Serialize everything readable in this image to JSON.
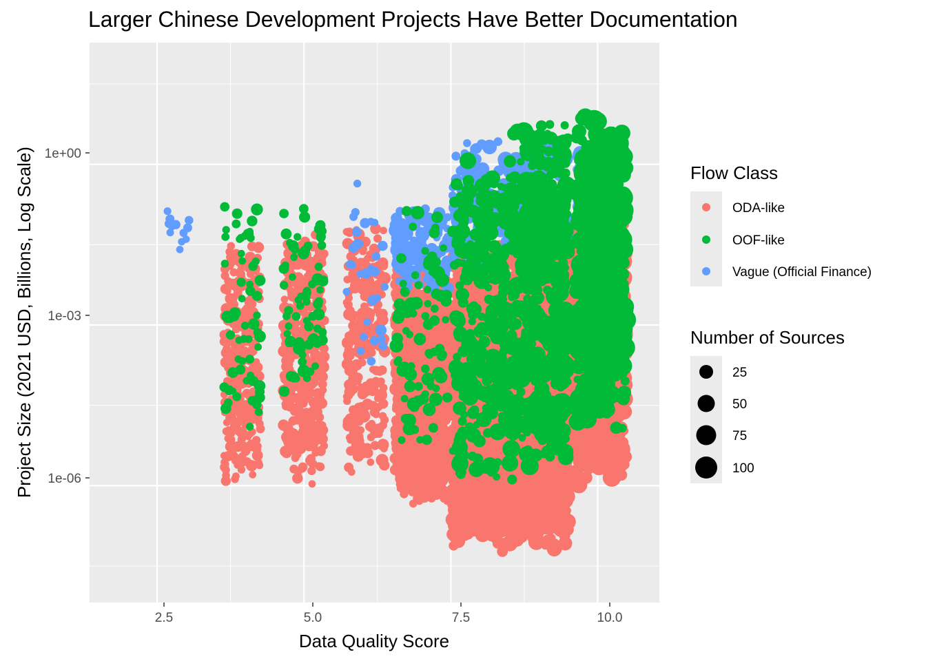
{
  "chart_data": {
    "type": "scatter",
    "title": "Larger Chinese Development Projects Have Better Documentation",
    "xlabel": "Data Quality Score",
    "ylabel": "Project Size (2021 USD, Billions, Log Scale)",
    "x_scale": "linear",
    "y_scale": "log10",
    "xlim": [
      1.35,
      11.05
    ],
    "ylim_log10": [
      -8.18,
      2.27
    ],
    "x_ticks": [
      2.5,
      5.0,
      7.5,
      10.0
    ],
    "x_tick_labels": [
      "2.5",
      "5.0",
      "7.5",
      "10.0"
    ],
    "y_ticks_log10": [
      0,
      -3,
      -6
    ],
    "y_tick_labels": [
      "1e+00",
      "1e-03",
      "1e-06"
    ],
    "grid": true,
    "color_legend": {
      "title": "Flow Class",
      "entries": [
        {
          "label": "ODA-like",
          "color": "#F8766D"
        },
        {
          "label": "OOF-like",
          "color": "#00BA38"
        },
        {
          "label": "Vague (Official Finance)",
          "color": "#619CFF"
        }
      ]
    },
    "size_legend": {
      "title": "Number of Sources",
      "entries": [
        25,
        50,
        75,
        100
      ],
      "labels": [
        "25",
        "50",
        "75",
        "100"
      ]
    },
    "clusters": [
      {
        "x_center": 2.85,
        "x_spread": 0.4,
        "class": "Vague (Official Finance)",
        "count": 12,
        "log_y_range": [
          -2.2,
          -0.5
        ],
        "sources": [
          1,
          5
        ]
      },
      {
        "x_center": 3.95,
        "x_spread": 0.62,
        "class": "ODA-like",
        "count": 320,
        "log_y_range": [
          -6.5,
          -1.0
        ],
        "sources": [
          1,
          12
        ]
      },
      {
        "x_center": 3.95,
        "x_spread": 0.62,
        "class": "OOF-like",
        "count": 60,
        "log_y_range": [
          -5.5,
          -0.2
        ],
        "sources": [
          1,
          15
        ]
      },
      {
        "x_center": 5.0,
        "x_spread": 0.7,
        "class": "ODA-like",
        "count": 380,
        "log_y_range": [
          -6.6,
          -0.6
        ],
        "sources": [
          1,
          14
        ]
      },
      {
        "x_center": 5.0,
        "x_spread": 0.7,
        "class": "OOF-like",
        "count": 70,
        "log_y_range": [
          -5.0,
          -0.3
        ],
        "sources": [
          1,
          16
        ]
      },
      {
        "x_center": 6.05,
        "x_spread": 0.65,
        "class": "ODA-like",
        "count": 260,
        "log_y_range": [
          -6.3,
          -0.3
        ],
        "sources": [
          1,
          18
        ]
      },
      {
        "x_center": 6.05,
        "x_spread": 0.65,
        "class": "Vague (Official Finance)",
        "count": 30,
        "log_y_range": [
          -4.5,
          0.1
        ],
        "sources": [
          1,
          12
        ]
      },
      {
        "x_center": 7.0,
        "x_spread": 0.9,
        "class": "ODA-like",
        "count": 1100,
        "log_y_range": [
          -6.8,
          -1.4
        ],
        "sources": [
          1,
          22
        ]
      },
      {
        "x_center": 7.0,
        "x_spread": 0.9,
        "class": "Vague (Official Finance)",
        "count": 140,
        "log_y_range": [
          -2.5,
          -0.6
        ],
        "sources": [
          1,
          25
        ]
      },
      {
        "x_center": 7.0,
        "x_spread": 0.9,
        "class": "OOF-like",
        "count": 90,
        "log_y_range": [
          -6.0,
          -0.3
        ],
        "sources": [
          1,
          25
        ]
      },
      {
        "x_center": 8.0,
        "x_spread": 0.95,
        "class": "ODA-like",
        "count": 1500,
        "log_y_range": [
          -7.8,
          -0.8
        ],
        "sources": [
          1,
          35
        ]
      },
      {
        "x_center": 8.0,
        "x_spread": 0.95,
        "class": "OOF-like",
        "count": 300,
        "log_y_range": [
          -6.5,
          0.8
        ],
        "sources": [
          1,
          50
        ]
      },
      {
        "x_center": 8.0,
        "x_spread": 0.95,
        "class": "Vague (Official Finance)",
        "count": 120,
        "log_y_range": [
          -2.2,
          0.7
        ],
        "sources": [
          1,
          40
        ]
      },
      {
        "x_center": 9.0,
        "x_spread": 1.0,
        "class": "ODA-like",
        "count": 1500,
        "log_y_range": [
          -7.8,
          -0.9
        ],
        "sources": [
          1,
          45
        ]
      },
      {
        "x_center": 9.0,
        "x_spread": 1.0,
        "class": "OOF-like",
        "count": 500,
        "log_y_range": [
          -6.5,
          1.6
        ],
        "sources": [
          1,
          70
        ]
      },
      {
        "x_center": 9.0,
        "x_spread": 1.0,
        "class": "Vague (Official Finance)",
        "count": 90,
        "log_y_range": [
          -1.8,
          0.6
        ],
        "sources": [
          1,
          50
        ]
      },
      {
        "x_center": 10.05,
        "x_spread": 0.85,
        "class": "ODA-like",
        "count": 900,
        "log_y_range": [
          -6.5,
          -0.4
        ],
        "sources": [
          1,
          60
        ]
      },
      {
        "x_center": 10.05,
        "x_spread": 0.85,
        "class": "OOF-like",
        "count": 500,
        "log_y_range": [
          -5.5,
          1.6
        ],
        "sources": [
          1,
          100
        ]
      },
      {
        "x_center": 10.05,
        "x_spread": 0.85,
        "class": "Vague (Official Finance)",
        "count": 40,
        "log_y_range": [
          -1.5,
          0.5
        ],
        "sources": [
          1,
          40
        ]
      }
    ]
  }
}
